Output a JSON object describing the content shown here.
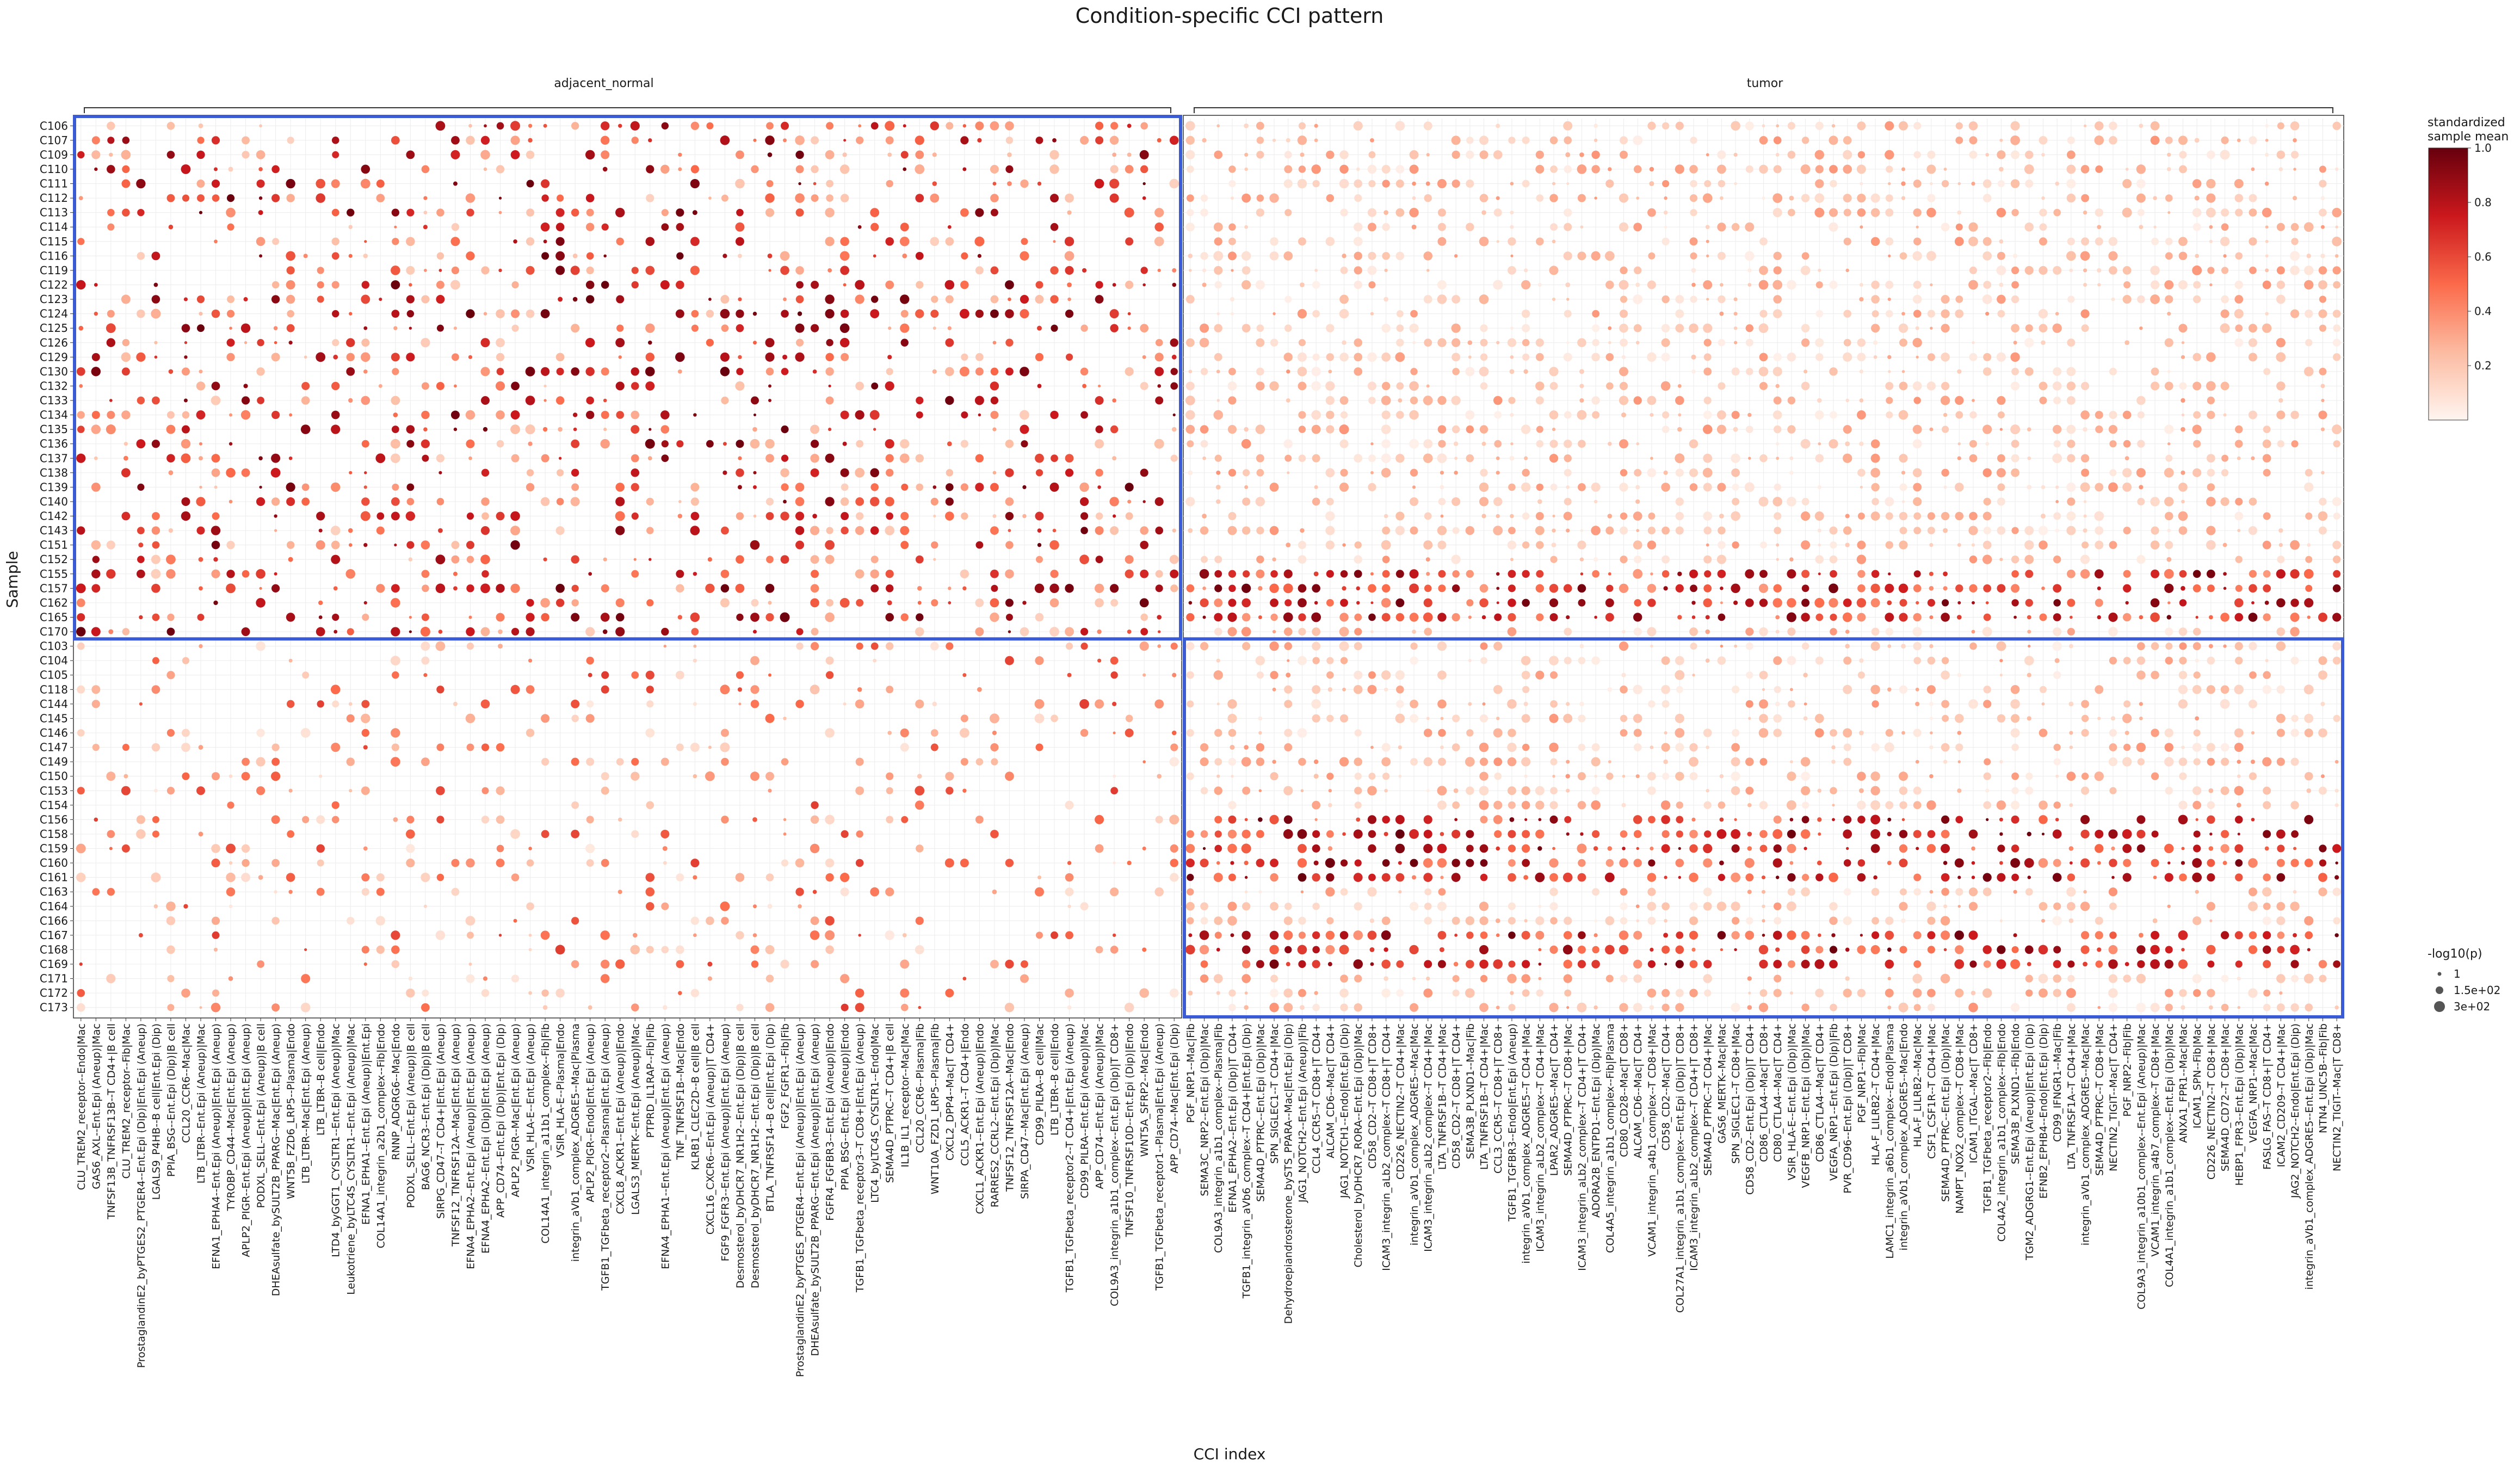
{
  "chart_data": {
    "type": "scatter",
    "title": "Condition-specific CCI pattern",
    "xlabel": "CCI index",
    "ylabel": "Sample",
    "facets": [
      "adjacent_normal",
      "tumor"
    ],
    "color_legend": {
      "title": [
        "standardized",
        "sample mean"
      ],
      "ticks": [
        "1.0",
        "0.8",
        "0.6",
        "0.4",
        "0.2"
      ],
      "range": [
        0,
        1
      ],
      "low_color": "#fff5f0",
      "mid_color": "#ef3b2c",
      "high_color": "#67000d"
    },
    "size_legend": {
      "title": "-log10(p)",
      "labels": [
        "1",
        "1.5e+02",
        "3e+02"
      ],
      "values": [
        1,
        150,
        300
      ]
    },
    "highlight_color": "#3b5bd4",
    "samples": [
      "C106",
      "C107",
      "C109",
      "C110",
      "C111",
      "C112",
      "C113",
      "C114",
      "C115",
      "C116",
      "C119",
      "C122",
      "C123",
      "C124",
      "C125",
      "C126",
      "C129",
      "C130",
      "C132",
      "C133",
      "C134",
      "C135",
      "C136",
      "C137",
      "C138",
      "C139",
      "C140",
      "C142",
      "C143",
      "C151",
      "C152",
      "C155",
      "C157",
      "C162",
      "C165",
      "C170",
      "C103",
      "C104",
      "C105",
      "C118",
      "C144",
      "C145",
      "C146",
      "C147",
      "C149",
      "C150",
      "C153",
      "C154",
      "C156",
      "C158",
      "C159",
      "C160",
      "C161",
      "C163",
      "C164",
      "C166",
      "C167",
      "C168",
      "C169",
      "C171",
      "C172",
      "C173"
    ],
    "normal_group_size": 36,
    "cci_adjacent_normal": [
      "CLU_TREM2_receptor--Endo|Mac",
      "GAS6_AXL--Ent.Epi (Aneup)|Mac",
      "TNFSF13B_TNFRSF13B--T CD4+|B cell",
      "CLU_TREM2_receptor--Fib|Mac",
      "ProstaglandinE2_byPTGES2_PTGER4--Ent.Epi (Dip)|Ent.Epi (Aneup)",
      "LGALS9_P4HB--B cell|Ent.Epi (Dip)",
      "PPIA_BSG--Ent.Epi (Dip)|B cell",
      "CCL20_CCR6--Mac|Mac",
      "LTB_LTBR--Ent.Epi (Aneup)|Mac",
      "EFNA1_EPHA4--Ent.Epi (Aneup)|Ent.Epi (Aneup)",
      "TYROBP_CD44--Mac|Ent.Epi (Aneup)",
      "APLP2_PIGR--Ent.Epi (Aneup)|Ent.Epi (Aneup)",
      "PODXL_SELL--Ent.Epi (Aneup)|B cell",
      "DHEAsulfate_bySULT2B_PPARG--Mac|Ent.Epi (Aneup)",
      "WNT5B_FZD6_LRP5--Plasma|Endo",
      "LTB_LTBR--Mac|Ent.Epi (Aneup)",
      "LTB_LTBR--B cell|Endo",
      "LTD4_byGGT1_CYSLTR1--Ent.Epi (Aneup)|Mac",
      "Leukotriene_byLTC4S_CYSLTR1--Ent.Epi (Aneup)|Mac",
      "EFNA1_EPHA1--Ent.Epi (Aneup)|Ent.Epi",
      "COL14A1_integrin_a2b1_complex--Fib|Endo",
      "RNNP_ADGRG6--Mac|Endo",
      "PODXL_SELL--Ent.Epi (Aneup)|B cell",
      "BAG6_NCR3--Ent.Epi (Dip)|B cell",
      "SIRPG_CD47--T CD4+|Ent.Epi (Aneup)",
      "TNFSF12_TNFRSF12A--Mac|Ent.Epi (Aneup)",
      "EFNA4_EPHA2--Ent.Epi (Aneup)|Ent.Epi (Aneup)",
      "EFNA4_EPHA2--Ent.Epi (Dip)|Ent.Epi (Aneup)",
      "APP_CD74--Ent.Epi (Dip)|Ent.Epi (Dip)",
      "APLP2_PIGR--Mac|Ent.Epi (Aneup)",
      "VSIR_HLA-E--Ent.Epi (Aneup)",
      "COL14A1_integrin_a11b1_complex--Fib|Fib",
      "VSIR_HLA-E--Plasma|Endo",
      "integrin_aVb1_complex_ADGRE5--Mac|Plasma",
      "APLP2_PIGR--Endo|Ent.Epi (Aneup)",
      "TGFB1_TGFbeta_receptor2--Plasma|Ent.Epi (Aneup)",
      "CXCL8_ACKR1--Ent.Epi (Aneup)|Endo",
      "LGALS3_MERTK--Ent.Epi (Aneup)|Mac",
      "PTPRD_IL1RAP--Fib|Fib",
      "EFNA4_EPHA1--Ent.Epi (Aneup)|Ent.Epi (Aneup)",
      "TNF_TNFRSF1B--Mac|Endo",
      "KLRB1_CLEC2D--B cell|B cell",
      "CXCL16_CXCR6--Ent.Epi (Aneup)|T CD4+",
      "FGF9_FGFR3--Ent.Epi (Aneup)|Ent.Epi (Aneup)",
      "Desmosterol_byDHCR7_NR1H2--Ent.Epi (Dip)|B cell",
      "Desmosterol_byDHCR7_NR1H2--Ent.Epi (Dip)|B cell",
      "BTLA_TNFRSF14--B cell|Ent.Epi (Dip)",
      "FGF2_FGFR1--Fib|Fib",
      "ProstaglandinE2_byPTGES_PTGER4--Ent.Epi (Aneup)|Ent.Epi (Aneup)",
      "DHEAsulfate_bySULT2B_PPARG--Ent.Epi (Aneup)|Ent.Epi (Aneup)",
      "FGFR4_FGFBR3--Ent.Epi (Aneup)|Endo",
      "PPIA_BSG--Ent.Epi (Aneup)|Endo",
      "TGFB1_TGFbeta_receptor3--T CD8+|Ent.Epi (Aneup)",
      "LTC4_byLTC4S_CYSLTR1--Endo|Mac",
      "SEMA4D_PTPRC--T CD4+|B cell",
      "IL1B_IL1_receptor--Mac|Mac",
      "CCL20_CCR6--Plasma|Fib",
      "WNT10A_FZD1_LRP5--Plasma|Fib",
      "CXCL2_DPP4--Mac|T CD4+",
      "CCL5_ACKR1--T CD4+|Endo",
      "CXCL1_ACKR1--Ent.Epi (Aneup)|Endo",
      "RARRES2_CCRL2--Ent.Epi (Dip)|Mac",
      "TNFSF12_TNFRSF12A--Mac|Endo",
      "SIRPA_CD47--Mac|Ent.Epi (Aneup)",
      "CD99_PILRA--B cell|Mac",
      "LTB_LTBR--B cell|Endo",
      "TGFB1_TGFbeta_receptor2--T CD4+|Ent.Epi (Aneup)",
      "CD99_PILRA--Ent.Epi (Aneup)|Mac",
      "APP_CD74--Ent.Epi (Aneup)|Mac",
      "COL9A3_integrin_a1b1_complex--Ent.Epi (Dip)|T CD8+",
      "TNFSF10_TNFRSF10D--Ent.Epi (Dip)|Endo",
      "WNT5A_SFRP2--Mac|Endo",
      "TGFB1_TGFbeta_receptor1--Plasma|Ent.Epi (Aneup)",
      "APP_CD74--Mac|Ent.Epi (Dip)"
    ],
    "cci_tumor": [
      "PGF_NRP1--Mac|Fib",
      "SEMA3C_NRP2--Ent.Epi (Dip)|Mac",
      "COL9A3_integrin_a1b1_complex--Plasma|Fib",
      "EFNA1_EPHA2--Ent.Epi (Dip)|T CD4+",
      "TGFB1_integrin_aVb6_complex--T CD4+|Ent.Epi (Dip)",
      "SEMA4D_PTPRC--Ent.Epi (Dip)|Mac",
      "SPN_SIGLEC1--T CD4+|Mac",
      "Dehydroepiandrosterone_bySTS_PPARA--Mac|Ent.Epi (Dip)",
      "JAG1_NOTCH2--Ent.Epi (Aneup)|Fib",
      "CCL4_CCR5--T CD8+|T CD4+",
      "ALCAM_CD6--Mac|T CD4+",
      "JAG1_NOTCH1--Endo|Ent.Epi (Dip)",
      "Cholesterol_byDHCR7_RORA--Ent.Epi (Dip)|Mac",
      "CD58_CD2--T CD8+|T CD8+",
      "ICAM3_integrin_aLb2_complex--T CD8+|T CD4+",
      "CD226_NECTIN2--T CD4+|Mac",
      "integrin_aVb1_complex_ADGRE5--Mac|Mac",
      "ICAM3_integrin_aLb2_complex--T CD4+|Mac",
      "LTA_TNFRSF1B--T CD4+|Mac",
      "CD58_CD2--T CD8+|T CD4+",
      "SEMA3B_PLXND1--Mac|Fib",
      "LTA_TNFRSF1B--T CD4+|Mac",
      "CCL3_CCR5--T CD8+|T CD8+",
      "TGFB1_TGFBR3--Endo|Ent.Epi (Aneup)",
      "integrin_aVb1_complex_ADGRE5--T CD4+|Mac",
      "ICAM3_integrin_aLb2_complex--T CD4+|Mac",
      "LPAR2_ADGRE5--Mac|T CD4+",
      "SEMA4D_PTPRC--T CD8+|Mac",
      "ICAM3_integrin_aLb2_complex--T CD4+|T CD4+",
      "ADORA2B_ENTPD1--Ent.Epi (Dip)|Mac",
      "COL4A5_integrin_a1b1_complex--Fib|Plasma",
      "CD80_CD28--Mac|T CD8+",
      "ALCAM_CD6--Mac|T CD4+",
      "VCAM1_integrin_a4b1_complex--T CD8+|Mac",
      "CD58_CD2--Mac|T CD4+",
      "COL27A1_integrin_a1b1_complex--Ent.Epi (Dip)|T CD8+",
      "ICAM3_integrin_aLb2_complex--T CD4+|T CD8+",
      "SEMA4D_PTPRC--T CD4+|Mac",
      "GAS6_MERTK--Mac|Mac",
      "SPN_SIGLEC1--T CD8+|Mac",
      "CD58_CD2--Ent.Epi (Dip)|T CD4+",
      "CD86_CTLA4--Mac|T CD8+",
      "CD80_CTLA4--Mac|T CD4+",
      "VSIR_HLA-E--Ent.Epi (Dip)|Mac",
      "VEGFB_NRP1--Ent.Epi (Dip)|Mac",
      "CD86_CTLA4--Mac|T CD4+",
      "VEGFA_NRP1--Ent.Epi (Dip)|Fib",
      "PVR_CD96--Ent.Epi (Dip)|T CD8+",
      "PGF_NRP1--Fib|Mac",
      "HLA-F_LILRB2--T CD4+|Mac",
      "LAMC1_integrin_a6b1_complex--Endo|Plasma",
      "integrin_aVb1_complex_ADGRE5--Mac|Endo",
      "HLA-F_LILRB2--Mac|Mac",
      "CSF1_CSF1R--T CD4+|Mac",
      "SEMA4D_PTPRC--Ent.Epi (Dip)|Mac",
      "NAMPT_NOX2_complex--T CD8+|Mac",
      "ICAM1_ITGAL--Mac|T CD8+",
      "TGFB1_TGFbeta_receptor2--Fib|Endo",
      "COL4A2_integrin_a1b1_complex--Fib|Endo",
      "SEMA3B_PLXND1--Fib|Endo",
      "TGM2_ADGRG1--Ent.Epi (Aneup)|Ent.Epi (Dip)",
      "EFNB2_EPHB4--Endo|Ent.Epi (Dip)",
      "CD99_IFNGR1--Mac|Fib",
      "LTA_TNFRSF1A--T CD4+|Mac",
      "integrin_aVb1_complex_ADGRE5--Mac|Mac",
      "SEMA4D_PTPRC--T CD8+|Mac",
      "NECTIN2_TIGIT--Mac|T CD4+",
      "PGF_NRP2--Fib|Fib",
      "COL9A3_integrin_a10b1_complex--Ent.Epi (Aneup)|Mac",
      "VCAM1_integrin_a4b7_complex--T CD8+|Mac",
      "COL4A1_integrin_a1b1_complex--Ent.Epi (Dip)|Mac",
      "ANXA1_FPR1--Mac|Mac",
      "ICAM1_SPN--Fib|Mac",
      "CD226_NECTIN2--T CD8+|Mac",
      "SEMA4D_CD72--T CD8+|Mac",
      "HEBP1_FPR3--Ent.Epi (Dip)|Mac",
      "VEGFA_NRP1--Mac|Mac",
      "FASLG_FAS--T CD8+|T CD4+",
      "ICAM2_CD209--T CD4+|Mac",
      "JAG2_NOTCH2--Endo|Ent.Epi (Dip)",
      "integrin_aVb1_complex_ADGRE5--Ent.Epi (Dip)|Mac",
      "NTN4_UNC5B--Fib|Fib",
      "NECTIN2_TIGIT--Mac|T CD8+"
    ]
  }
}
